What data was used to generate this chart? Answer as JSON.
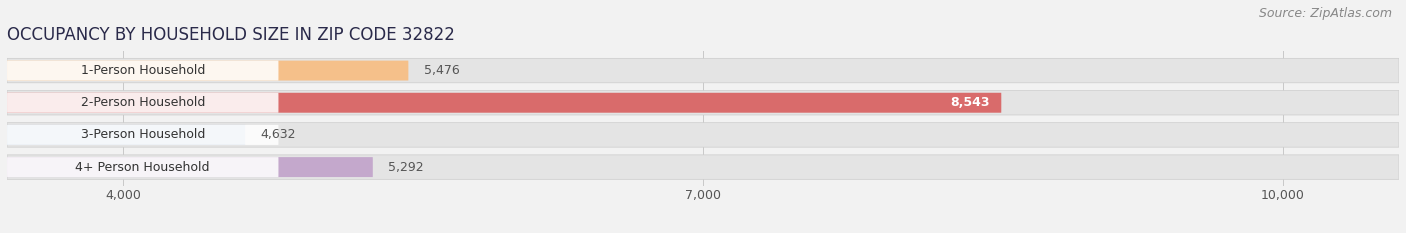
{
  "title": "OCCUPANCY BY HOUSEHOLD SIZE IN ZIP CODE 32822",
  "source": "Source: ZipAtlas.com",
  "categories": [
    "1-Person Household",
    "2-Person Household",
    "3-Person Household",
    "4+ Person Household"
  ],
  "values": [
    5476,
    8543,
    4632,
    5292
  ],
  "bar_colors": [
    "#f5c08a",
    "#d96b6b",
    "#a8bfd8",
    "#c4a8cc"
  ],
  "xlim_min": 3400,
  "xlim_max": 10600,
  "xticks": [
    4000,
    7000,
    10000
  ],
  "xtick_labels": [
    "4,000",
    "7,000",
    "10,000"
  ],
  "background_color": "#f2f2f2",
  "bar_bg_color": "#e4e4e4",
  "label_bg_color": "#ffffff",
  "title_fontsize": 12,
  "source_fontsize": 9,
  "label_fontsize": 9,
  "value_fontsize": 9,
  "value_color_inside": "#ffffff",
  "value_color_outside": "#555555"
}
